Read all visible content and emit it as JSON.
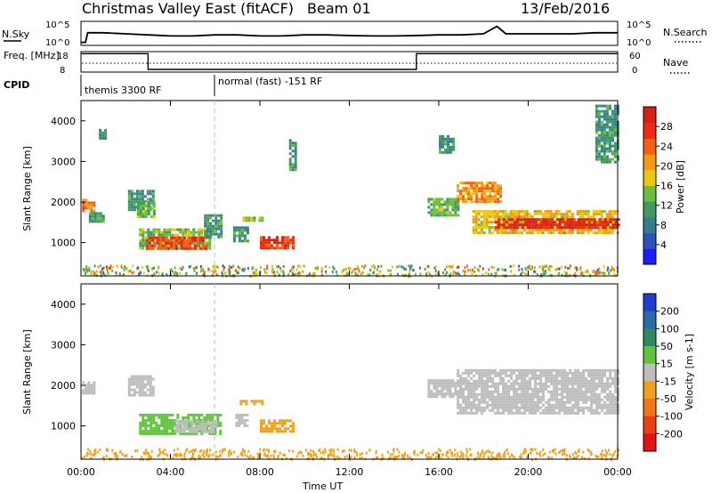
{
  "header": {
    "title": "Christmas Valley East (fitACF)",
    "beam": "Beam 01",
    "date": "13/Feb/2016"
  },
  "chart_data": [
    {
      "type": "line",
      "panel": "noise",
      "left_label": "N.Sky",
      "right_label": "N.Search",
      "yticks": [
        "10^5",
        "10^0"
      ],
      "x_range_hours": [
        0,
        24
      ],
      "series": [
        {
          "name": "N.Sky",
          "x": [
            0,
            0.2,
            0.3,
            1,
            2,
            3,
            4,
            5,
            6,
            7,
            8,
            9,
            10,
            11,
            12,
            13,
            14,
            15,
            16,
            17,
            18,
            18.6,
            19,
            20,
            21,
            22,
            23,
            24
          ],
          "values": [
            0.1,
            0.1,
            0.55,
            0.55,
            0.5,
            0.45,
            0.4,
            0.4,
            0.45,
            0.45,
            0.4,
            0.4,
            0.45,
            0.45,
            0.42,
            0.4,
            0.4,
            0.42,
            0.45,
            0.45,
            0.5,
            0.85,
            0.5,
            0.5,
            0.5,
            0.5,
            0.55,
            0.55
          ]
        }
      ]
    },
    {
      "type": "line",
      "panel": "frequency",
      "left_label": "Freq. [MHz]",
      "right_label": "Nave",
      "left_ticks": [
        "18",
        "8"
      ],
      "right_ticks": [
        "60",
        "0"
      ],
      "series": [
        {
          "name": "Freq.",
          "x": [
            0,
            3,
            3,
            15,
            15,
            24
          ],
          "values": [
            17,
            17,
            9.3,
            9.3,
            17,
            17
          ]
        }
      ]
    },
    {
      "type": "table",
      "panel": "cpid",
      "label": "CPID",
      "segments": [
        {
          "start_hour": 0,
          "text": "themis 3300 RF"
        },
        {
          "start_hour": 6,
          "text": "normal (fast) -151 RF"
        }
      ]
    },
    {
      "type": "heatmap",
      "panel": "power",
      "ylabel": "Slant Range [km]",
      "ylim": [
        180,
        4500
      ],
      "yticks": [
        1000,
        2000,
        3000,
        4000
      ],
      "colorbar": {
        "title": "Power [dB]",
        "ticks": [
          4,
          8,
          12,
          16,
          20,
          24,
          28
        ],
        "range": [
          0,
          32
        ],
        "colors": [
          "#1c1cff",
          "#2d52b8",
          "#347f8d",
          "#3f9b61",
          "#6cbd3f",
          "#e8c810",
          "#f29a10",
          "#f45f13",
          "#ec2a16",
          "#d81f16"
        ]
      },
      "regions": [
        {
          "x": [
            0.05,
            0.55
          ],
          "y": [
            1780,
            2080
          ],
          "level": 0.75
        },
        {
          "x": [
            0.35,
            1.0
          ],
          "y": [
            1550,
            1750
          ],
          "level": 0.35
        },
        {
          "x": [
            0.8,
            1.05
          ],
          "y": [
            3550,
            3800
          ],
          "level": 0.25
        },
        {
          "x": [
            2.1,
            3.2
          ],
          "y": [
            1800,
            2300
          ],
          "level": 0.3
        },
        {
          "x": [
            2.5,
            3.3
          ],
          "y": [
            1650,
            2000
          ],
          "level": 0.4
        },
        {
          "x": [
            2.6,
            5.8
          ],
          "y": [
            850,
            1350
          ],
          "level": 0.45
        },
        {
          "x": [
            2.9,
            5.6
          ],
          "y": [
            880,
            1150
          ],
          "level": 0.85
        },
        {
          "x": [
            5.5,
            6.3
          ],
          "y": [
            1150,
            1700
          ],
          "level": 0.3
        },
        {
          "x": [
            6.8,
            7.4
          ],
          "y": [
            1050,
            1400
          ],
          "level": 0.3
        },
        {
          "x": [
            7.1,
            8.1
          ],
          "y": [
            1520,
            1640
          ],
          "level": 0.5
        },
        {
          "x": [
            8.0,
            9.5
          ],
          "y": [
            860,
            1160
          ],
          "level": 0.9
        },
        {
          "x": [
            9.3,
            9.6
          ],
          "y": [
            2800,
            3550
          ],
          "level": 0.3
        },
        {
          "x": [
            15.5,
            16.9
          ],
          "y": [
            1700,
            2100
          ],
          "level": 0.4
        },
        {
          "x": [
            16.0,
            16.6
          ],
          "y": [
            3200,
            3650
          ],
          "level": 0.3
        },
        {
          "x": [
            16.8,
            18.8
          ],
          "y": [
            2000,
            2500
          ],
          "level": 0.7
        },
        {
          "x": [
            17.5,
            24.0
          ],
          "y": [
            1250,
            1800
          ],
          "level": 0.6
        },
        {
          "x": [
            18.5,
            24.0
          ],
          "y": [
            1400,
            1600
          ],
          "level": 0.95
        },
        {
          "x": [
            23.0,
            24.0
          ],
          "y": [
            3000,
            4400
          ],
          "level": 0.3
        }
      ]
    },
    {
      "type": "heatmap",
      "panel": "velocity",
      "ylabel": "Slant Range [km]",
      "xlabel": "Time UT",
      "ylim": [
        180,
        4500
      ],
      "yticks": [
        1000,
        2000,
        3000,
        4000
      ],
      "xticks": [
        "00:00",
        "04:00",
        "08:00",
        "12:00",
        "16:00",
        "20:00",
        "00:00"
      ],
      "colorbar": {
        "title": "Velocity [m s-1]",
        "ticks": [
          "200",
          "100",
          "50",
          "15",
          "-15",
          "-50",
          "-100",
          "-200"
        ],
        "colors": [
          "#1f3ecf",
          "#2a6aa8",
          "#2e8a62",
          "#5fc43a",
          "#bdbdbd",
          "#f2a11c",
          "#f1761a",
          "#ee3d17",
          "#e01414"
        ]
      },
      "regions": [
        {
          "x": [
            0.05,
            0.55
          ],
          "y": [
            1780,
            2100
          ],
          "color": "#bdbdbd"
        },
        {
          "x": [
            2.1,
            3.2
          ],
          "y": [
            1750,
            2250
          ],
          "color": "#bdbdbd"
        },
        {
          "x": [
            2.6,
            6.3
          ],
          "y": [
            800,
            1300
          ],
          "color": "#5fc43a"
        },
        {
          "x": [
            4.2,
            6.1
          ],
          "y": [
            850,
            1150
          ],
          "color": "#bdbdbd"
        },
        {
          "x": [
            6.9,
            7.4
          ],
          "y": [
            1000,
            1300
          ],
          "color": "#bdbdbd"
        },
        {
          "x": [
            7.1,
            8.1
          ],
          "y": [
            1520,
            1640
          ],
          "color": "#f2a11c"
        },
        {
          "x": [
            8.0,
            9.5
          ],
          "y": [
            880,
            1160
          ],
          "color": "#f2a11c"
        },
        {
          "x": [
            15.5,
            17.0
          ],
          "y": [
            1700,
            2150
          ],
          "color": "#bdbdbd"
        },
        {
          "x": [
            16.8,
            24.0
          ],
          "y": [
            1300,
            2400
          ],
          "color": "#bdbdbd"
        }
      ]
    }
  ]
}
